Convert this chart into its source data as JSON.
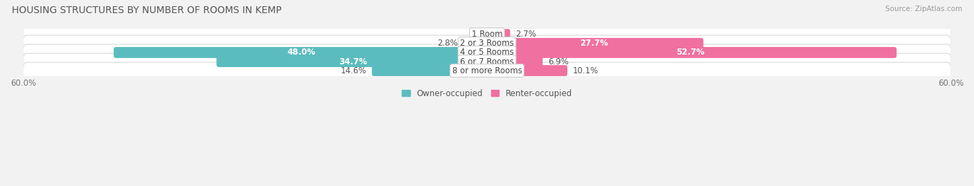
{
  "title": "HOUSING STRUCTURES BY NUMBER OF ROOMS IN KEMP",
  "source": "Source: ZipAtlas.com",
  "categories": [
    "1 Room",
    "2 or 3 Rooms",
    "4 or 5 Rooms",
    "6 or 7 Rooms",
    "8 or more Rooms"
  ],
  "owner_values": [
    0.0,
    2.8,
    48.0,
    34.7,
    14.6
  ],
  "renter_values": [
    2.7,
    27.7,
    52.7,
    6.9,
    10.1
  ],
  "owner_color": "#5bbcbf",
  "renter_color": "#f070a0",
  "owner_label": "Owner-occupied",
  "renter_label": "Renter-occupied",
  "xlim": 60.0,
  "bar_height": 0.62,
  "background_color": "#f2f2f2",
  "row_bg_color": "#ffffff",
  "row_border_color": "#d8d8d8",
  "title_fontsize": 10,
  "label_fontsize": 8.5,
  "axis_label_fontsize": 8.5,
  "legend_fontsize": 8.5,
  "white_text_threshold": 20.0
}
